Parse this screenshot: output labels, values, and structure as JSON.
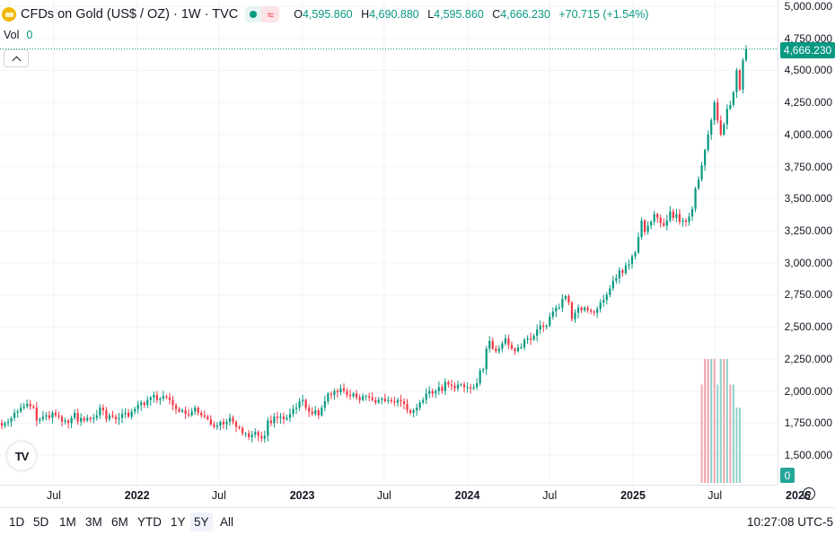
{
  "legend": {
    "title": "CFDs on Gold (US$ / OZ) · 1W · TVC",
    "open_label": "O",
    "open": "4,595.860",
    "high_label": "H",
    "high": "4,690.880",
    "low_label": "L",
    "low": "4,595.860",
    "close_label": "C",
    "close": "4,666.230",
    "change": "+70.715 (+1.54%)",
    "vol_label": "Vol",
    "vol_value": "0"
  },
  "colors": {
    "up": "#089981",
    "down": "#f23645",
    "grid": "#f0f3fa",
    "last_line": "#089981"
  },
  "icons": {
    "symbol": "gold-icon",
    "collapse": "chevron-up-icon",
    "settings": "settings-icon",
    "logo": "tradingview-logo"
  },
  "last_price": "4,666.230",
  "vol_last": "0",
  "logo_text": "TV",
  "time_labels": [
    "Jul",
    "2022",
    "Jul",
    "2023",
    "Jul",
    "2024",
    "Jul",
    "2025",
    "Jul",
    "2026"
  ],
  "ranges": [
    "1D",
    "5D",
    "1M",
    "3M",
    "6M",
    "YTD",
    "1Y",
    "5Y",
    "All"
  ],
  "active_range": "5Y",
  "clock": "10:27:08 UTC-5",
  "chart_data": {
    "type": "candlestick",
    "interval": "1W",
    "y_ticks": [
      5000,
      4750,
      4500,
      4250,
      4000,
      3750,
      3500,
      3250,
      3000,
      2750,
      2500,
      2250,
      2000,
      1750,
      1500
    ],
    "y_tick_labels": [
      "5,000.000",
      "4,750.000",
      "4,500.000",
      "4,250.000",
      "4,000.000",
      "3,750.000",
      "3,500.000",
      "3,250.000",
      "3,000.000",
      "2,750.000",
      "2,500.000",
      "2,250.000",
      "2,000.000",
      "1,750.000",
      "1,500.000"
    ],
    "ylim": [
      1320,
      5050
    ],
    "x_start": "2021-03-08",
    "x_end": "2026-01-19",
    "weekly_closes": [
      1730,
      1750,
      1760,
      1790,
      1830,
      1840,
      1870,
      1880,
      1900,
      1880,
      1870,
      1770,
      1780,
      1800,
      1810,
      1790,
      1830,
      1810,
      1800,
      1760,
      1770,
      1750,
      1790,
      1830,
      1760,
      1790,
      1770,
      1790,
      1780,
      1790,
      1810,
      1870,
      1850,
      1780,
      1810,
      1800,
      1780,
      1790,
      1820,
      1830,
      1800,
      1840,
      1860,
      1890,
      1910,
      1890,
      1930,
      1950,
      1970,
      1930,
      1940,
      1960,
      1950,
      1930,
      1890,
      1860,
      1840,
      1850,
      1820,
      1810,
      1840,
      1870,
      1830,
      1810,
      1800,
      1780,
      1740,
      1720,
      1730,
      1760,
      1740,
      1760,
      1790,
      1760,
      1720,
      1710,
      1670,
      1670,
      1640,
      1660,
      1680,
      1650,
      1630,
      1650,
      1770,
      1750,
      1800,
      1790,
      1800,
      1780,
      1790,
      1820,
      1860,
      1870,
      1920,
      1930,
      1870,
      1840,
      1820,
      1850,
      1810,
      1870,
      1920,
      1980,
      1970,
      2000,
      1990,
      2020,
      2000,
      1970,
      1960,
      1980,
      1950,
      1930,
      1960,
      1960,
      1950,
      1930,
      1910,
      1930,
      1940,
      1920,
      1930,
      1920,
      1910,
      1930,
      1920,
      1900,
      1850,
      1830,
      1850,
      1870,
      1910,
      1930,
      1980,
      2000,
      1980,
      2000,
      2030,
      2000,
      2070,
      2050,
      2040,
      2020,
      2050,
      2050,
      2030,
      2030,
      2020,
      2030,
      2060,
      2160,
      2170,
      2330,
      2390,
      2330,
      2310,
      2330,
      2370,
      2410,
      2360,
      2330,
      2310,
      2340,
      2340,
      2400,
      2410,
      2400,
      2430,
      2480,
      2510,
      2500,
      2510,
      2580,
      2620,
      2650,
      2650,
      2720,
      2740,
      2690,
      2560,
      2610,
      2650,
      2630,
      2650,
      2630,
      2620,
      2610,
      2640,
      2690,
      2710,
      2750,
      2800,
      2860,
      2880,
      2940,
      2920,
      2980,
      2990,
      3050,
      3080,
      3200,
      3330,
      3240,
      3290,
      3320,
      3380,
      3350,
      3310,
      3290,
      3330,
      3400,
      3350,
      3380,
      3320,
      3330,
      3320,
      3360,
      3420,
      3580,
      3650,
      3760,
      3880,
      4000,
      4110,
      4250,
      4110,
      4000,
      4080,
      4200,
      4230,
      4330,
      4500,
      4350,
      4580,
      4666
    ]
  },
  "volume_bars": [
    {
      "index": -14,
      "value": 2050,
      "up": false
    },
    {
      "index": -13,
      "value": 2250,
      "up": false
    },
    {
      "index": -12,
      "value": 2250,
      "up": false
    },
    {
      "index": -11,
      "value": 2250,
      "up": true
    },
    {
      "index": -10,
      "value": 2250,
      "up": false
    },
    {
      "index": -9,
      "value": 2050,
      "up": true
    },
    {
      "index": -8,
      "value": 2250,
      "up": true
    },
    {
      "index": -7,
      "value": 2250,
      "up": false
    },
    {
      "index": -6,
      "value": 2250,
      "up": true
    },
    {
      "index": -5,
      "value": 2050,
      "up": false
    },
    {
      "index": -4,
      "value": 2050,
      "up": true
    },
    {
      "index": -3,
      "value": 1870,
      "up": true
    },
    {
      "index": -2,
      "value": 1870,
      "up": true
    }
  ]
}
